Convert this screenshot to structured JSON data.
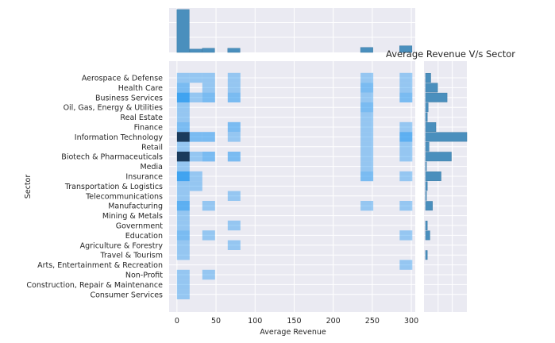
{
  "chart_data": {
    "type": "heatmap",
    "title": "Average Revenue V/s Sector",
    "xlabel": "Average Revenue",
    "ylabel": "Sector",
    "xlim": [
      -10,
      305
    ],
    "x_ticks": [
      0,
      50,
      100,
      150,
      200,
      250,
      300
    ],
    "bin_width": 16.25,
    "colors": {
      "panel_bg": "#eaeaf2",
      "grid": "#ffffff",
      "cell": "#2e9bf0",
      "dark_cell": "#1b3b5c",
      "marginal_bar": "#4a8fbd",
      "text": "#262626"
    },
    "sectors": [
      "Aerospace & Defense",
      "Health Care",
      "Business Services",
      "Oil, Gas, Energy & Utilities",
      "Real Estate",
      "Finance",
      "Information Technology",
      "Retail",
      "Biotech & Pharmaceuticals",
      "Media",
      "Insurance",
      "Transportation & Logistics",
      "Telecommunications",
      "Manufacturing",
      "Mining & Metals",
      "Government",
      "Education",
      "Agriculture & Forestry",
      "Travel & Tourism",
      "Arts, Entertainment & Recreation",
      "Non-Profit",
      "Construction, Repair & Maintenance",
      "Consumer Services"
    ],
    "cells": [
      {
        "sector": "Aerospace & Defense",
        "x0": 0,
        "count": 1
      },
      {
        "sector": "Aerospace & Defense",
        "x0": 16.25,
        "count": 1
      },
      {
        "sector": "Aerospace & Defense",
        "x0": 32.5,
        "count": 1
      },
      {
        "sector": "Aerospace & Defense",
        "x0": 65,
        "count": 1
      },
      {
        "sector": "Aerospace & Defense",
        "x0": 235,
        "count": 1
      },
      {
        "sector": "Aerospace & Defense",
        "x0": 285,
        "count": 1
      },
      {
        "sector": "Health Care",
        "x0": 0,
        "count": 2
      },
      {
        "sector": "Health Care",
        "x0": 32.5,
        "count": 1
      },
      {
        "sector": "Health Care",
        "x0": 65,
        "count": 1
      },
      {
        "sector": "Health Care",
        "x0": 235,
        "count": 2
      },
      {
        "sector": "Health Care",
        "x0": 285,
        "count": 1
      },
      {
        "sector": "Business Services",
        "x0": 0,
        "count": 4
      },
      {
        "sector": "Business Services",
        "x0": 16.25,
        "count": 1
      },
      {
        "sector": "Business Services",
        "x0": 32.5,
        "count": 2
      },
      {
        "sector": "Business Services",
        "x0": 65,
        "count": 2
      },
      {
        "sector": "Business Services",
        "x0": 235,
        "count": 1
      },
      {
        "sector": "Business Services",
        "x0": 285,
        "count": 2
      },
      {
        "sector": "Oil, Gas, Energy & Utilities",
        "x0": 0,
        "count": 1
      },
      {
        "sector": "Oil, Gas, Energy & Utilities",
        "x0": 235,
        "count": 2
      },
      {
        "sector": "Real Estate",
        "x0": 0,
        "count": 1
      },
      {
        "sector": "Real Estate",
        "x0": 235,
        "count": 1
      },
      {
        "sector": "Finance",
        "x0": 0,
        "count": 2
      },
      {
        "sector": "Finance",
        "x0": 65,
        "count": 2
      },
      {
        "sector": "Finance",
        "x0": 235,
        "count": 1
      },
      {
        "sector": "Finance",
        "x0": 285,
        "count": 1
      },
      {
        "sector": "Information Technology",
        "x0": 0,
        "count": 7
      },
      {
        "sector": "Information Technology",
        "x0": 16.25,
        "count": 2
      },
      {
        "sector": "Information Technology",
        "x0": 32.5,
        "count": 2
      },
      {
        "sector": "Information Technology",
        "x0": 65,
        "count": 1
      },
      {
        "sector": "Information Technology",
        "x0": 235,
        "count": 1
      },
      {
        "sector": "Information Technology",
        "x0": 285,
        "count": 3
      },
      {
        "sector": "Retail",
        "x0": 0,
        "count": 1
      },
      {
        "sector": "Retail",
        "x0": 235,
        "count": 1
      },
      {
        "sector": "Retail",
        "x0": 285,
        "count": 1
      },
      {
        "sector": "Biotech & Pharmaceuticals",
        "x0": 0,
        "count": 6
      },
      {
        "sector": "Biotech & Pharmaceuticals",
        "x0": 16.25,
        "count": 1
      },
      {
        "sector": "Biotech & Pharmaceuticals",
        "x0": 32.5,
        "count": 2
      },
      {
        "sector": "Biotech & Pharmaceuticals",
        "x0": 65,
        "count": 2
      },
      {
        "sector": "Biotech & Pharmaceuticals",
        "x0": 235,
        "count": 1
      },
      {
        "sector": "Biotech & Pharmaceuticals",
        "x0": 285,
        "count": 1
      },
      {
        "sector": "Media",
        "x0": 0,
        "count": 1
      },
      {
        "sector": "Media",
        "x0": 235,
        "count": 1
      },
      {
        "sector": "Insurance",
        "x0": 0,
        "count": 4
      },
      {
        "sector": "Insurance",
        "x0": 16.25,
        "count": 1
      },
      {
        "sector": "Insurance",
        "x0": 235,
        "count": 2
      },
      {
        "sector": "Insurance",
        "x0": 285,
        "count": 1
      },
      {
        "sector": "Transportation & Logistics",
        "x0": 0,
        "count": 1
      },
      {
        "sector": "Transportation & Logistics",
        "x0": 16.25,
        "count": 1
      },
      {
        "sector": "Telecommunications",
        "x0": 0,
        "count": 1
      },
      {
        "sector": "Telecommunications",
        "x0": 65,
        "count": 1
      },
      {
        "sector": "Manufacturing",
        "x0": 0,
        "count": 3
      },
      {
        "sector": "Manufacturing",
        "x0": 32.5,
        "count": 1
      },
      {
        "sector": "Manufacturing",
        "x0": 235,
        "count": 1
      },
      {
        "sector": "Manufacturing",
        "x0": 285,
        "count": 1
      },
      {
        "sector": "Mining & Metals",
        "x0": 0,
        "count": 1
      },
      {
        "sector": "Government",
        "x0": 0,
        "count": 1
      },
      {
        "sector": "Government",
        "x0": 65,
        "count": 1
      },
      {
        "sector": "Education",
        "x0": 0,
        "count": 2
      },
      {
        "sector": "Education",
        "x0": 32.5,
        "count": 1
      },
      {
        "sector": "Education",
        "x0": 285,
        "count": 1
      },
      {
        "sector": "Agriculture & Forestry",
        "x0": 0,
        "count": 1
      },
      {
        "sector": "Agriculture & Forestry",
        "x0": 65,
        "count": 1
      },
      {
        "sector": "Travel & Tourism",
        "x0": 0,
        "count": 1
      },
      {
        "sector": "Arts, Entertainment & Recreation",
        "x0": 285,
        "count": 1
      },
      {
        "sector": "Non-Profit",
        "x0": 0,
        "count": 1
      },
      {
        "sector": "Non-Profit",
        "x0": 32.5,
        "count": 1
      },
      {
        "sector": "Construction, Repair & Maintenance",
        "x0": 0,
        "count": 1
      },
      {
        "sector": "Consumer Services",
        "x0": 0,
        "count": 1
      }
    ],
    "marginal_x": {
      "bins": [
        0,
        16.25,
        32.5,
        48.75,
        65,
        81.25,
        235,
        251.25,
        285,
        301.25
      ],
      "counts": [
        52,
        4,
        5,
        0,
        5,
        0,
        6,
        0,
        8
      ]
    },
    "marginal_y": {
      "Aerospace & Defense": 6,
      "Health Care": 14,
      "Business Services": 25,
      "Oil, Gas, Energy & Utilities": 3,
      "Real Estate": 2,
      "Finance": 12,
      "Information Technology": 48,
      "Retail": 4,
      "Biotech & Pharmaceuticals": 30,
      "Media": 1,
      "Insurance": 18,
      "Transportation & Logistics": 2,
      "Telecommunications": 1,
      "Manufacturing": 8,
      "Mining & Metals": 0,
      "Government": 2,
      "Education": 5,
      "Agriculture & Forestry": 0,
      "Travel & Tourism": 2,
      "Arts, Entertainment & Recreation": 0,
      "Non-Profit": 0,
      "Construction, Repair & Maintenance": 0,
      "Consumer Services": 0
    }
  }
}
